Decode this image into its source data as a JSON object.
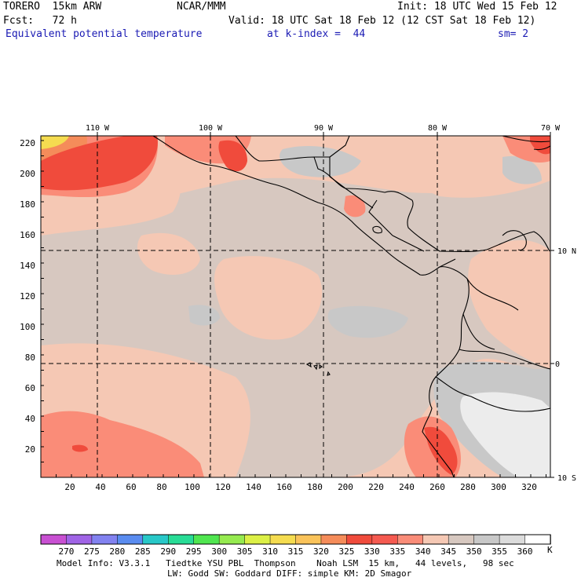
{
  "header": {
    "model": "TORERO  15km ARW",
    "org": "NCAR/MMM",
    "init": "Init: 18 UTC Wed 15 Feb 12",
    "fcst": "Fcst:   72 h",
    "valid": "Valid: 18 UTC Sat 18 Feb 12 (12 CST Sat 18 Feb 12)",
    "field": "Equivalent potential temperature",
    "level": "at k-index =  44",
    "smooth": "sm= 2"
  },
  "map": {
    "lon_labels": [
      "110 W",
      "100 W",
      "90 W",
      "80 W",
      "70 W"
    ],
    "lat_labels": [
      "10 N",
      "0",
      "10 S"
    ],
    "grid_y_labels": [
      "220",
      "200",
      "180",
      "160",
      "140",
      "120",
      "100",
      "80",
      "60",
      "40",
      "20"
    ],
    "grid_x_labels": [
      "20",
      "40",
      "60",
      "80",
      "100",
      "120",
      "140",
      "160",
      "180",
      "200",
      "220",
      "240",
      "260",
      "280",
      "300",
      "320"
    ]
  },
  "colorbar": {
    "colors": [
      "#c850d2",
      "#a064e6",
      "#8282f0",
      "#5a8cf0",
      "#28c8c8",
      "#28dc96",
      "#50e650",
      "#96eb50",
      "#dcf046",
      "#f5dc50",
      "#fac35a",
      "#f58c5a",
      "#f04b3c",
      "#f55a50",
      "#fa8c78",
      "#f5c8b4",
      "#d7c8c0",
      "#c8c8c8",
      "#dcdcdc",
      "#ffffff"
    ],
    "labels": [
      "270",
      "275",
      "280",
      "285",
      "290",
      "295",
      "300",
      "305",
      "310",
      "315",
      "320",
      "325",
      "330",
      "335",
      "340",
      "345",
      "350",
      "355",
      "360"
    ],
    "units": "K"
  },
  "footer": {
    "line1": "Model Info: V3.3.1   Tiedtke YSU PBL  Thompson    Noah LSM  15 km,   44 levels,   98 sec",
    "line2": "LW: Godd SW: Goddard DIFF: simple KM: 2D Smagor"
  }
}
